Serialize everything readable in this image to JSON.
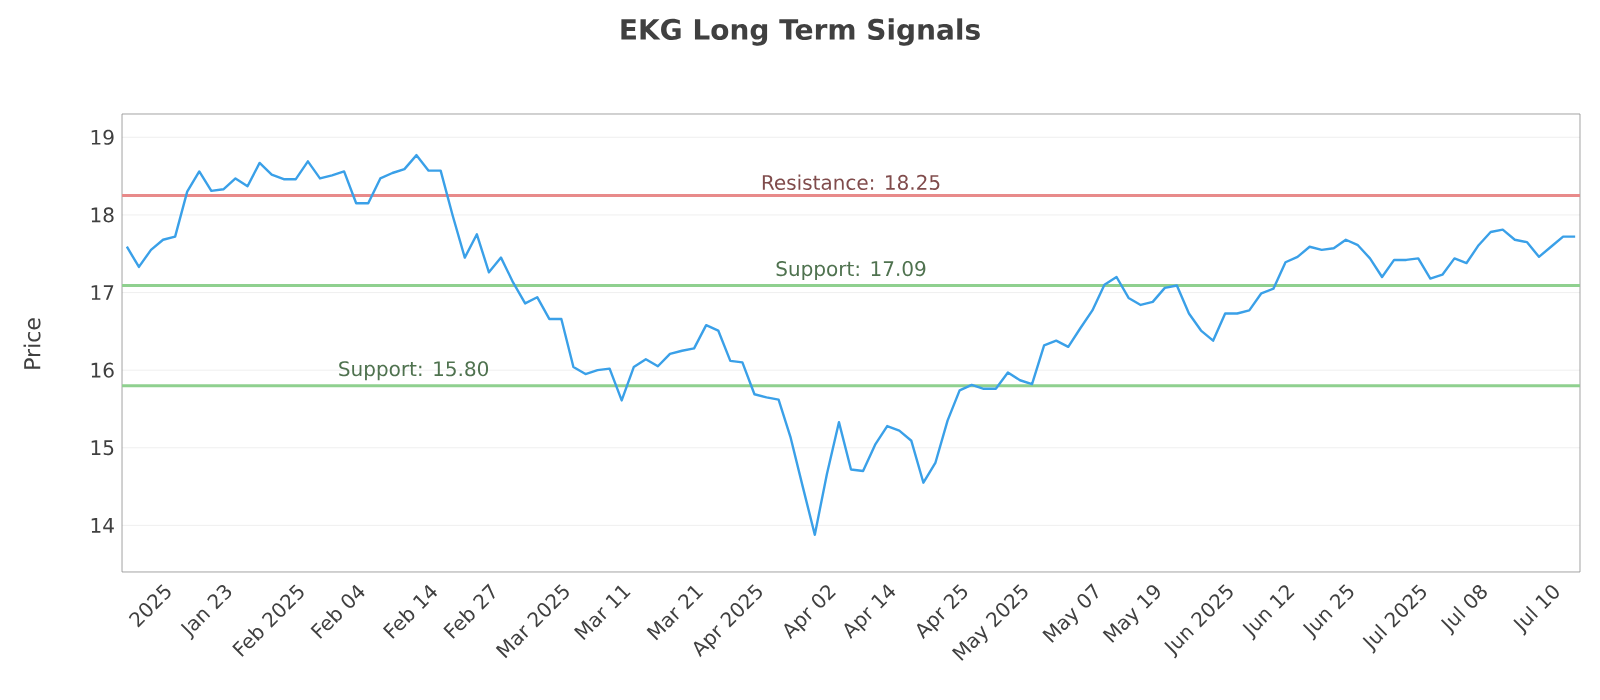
{
  "chart_data": {
    "type": "line",
    "title": "EKG Long Term Signals",
    "ylabel": "Price",
    "categories": [
      null,
      null,
      null,
      "2025",
      null,
      null,
      null,
      null,
      "Jan 23",
      null,
      null,
      null,
      null,
      null,
      "Feb 2025",
      null,
      null,
      null,
      null,
      "Feb 04",
      null,
      null,
      null,
      null,
      null,
      "Feb 14",
      null,
      null,
      null,
      null,
      "Feb 27",
      null,
      null,
      null,
      null,
      null,
      "Mar 2025",
      null,
      null,
      null,
      null,
      "Mar 11",
      null,
      null,
      null,
      null,
      null,
      "Mar 21",
      null,
      null,
      null,
      null,
      "Apr 2025",
      null,
      null,
      null,
      null,
      null,
      "Apr 02",
      null,
      null,
      null,
      null,
      "Apr 14",
      null,
      null,
      null,
      null,
      null,
      "Apr 25",
      null,
      null,
      null,
      null,
      "May 2025",
      null,
      null,
      null,
      null,
      null,
      "May 07",
      null,
      null,
      null,
      null,
      "May 19",
      null,
      null,
      null,
      null,
      null,
      "Jun 2025",
      null,
      null,
      null,
      null,
      "Jun 12",
      null,
      null,
      null,
      null,
      "Jun 25",
      null,
      null,
      null,
      null,
      null,
      "Jul 2025",
      null,
      null,
      null,
      null,
      "Jul 08",
      null,
      null,
      null,
      null,
      null,
      "Jul 10",
      null,
      null
    ],
    "series": [
      {
        "color": "#3aa0e8",
        "values": [
          17.59,
          17.33,
          17.55,
          17.68,
          17.72,
          18.3,
          18.56,
          18.31,
          18.33,
          18.47,
          18.37,
          18.67,
          18.52,
          18.46,
          18.46,
          18.69,
          18.47,
          18.51,
          18.56,
          18.15,
          18.15,
          18.47,
          18.54,
          18.59,
          18.77,
          18.57,
          18.57,
          17.99,
          17.45,
          17.75,
          17.26,
          17.45,
          17.13,
          16.86,
          16.94,
          16.66,
          16.66,
          16.04,
          15.95,
          16.0,
          16.02,
          15.61,
          16.04,
          16.14,
          16.05,
          16.21,
          16.25,
          16.28,
          16.58,
          16.51,
          16.12,
          16.1,
          15.69,
          15.65,
          15.62,
          15.13,
          14.5,
          13.88,
          14.66,
          15.33,
          14.72,
          14.7,
          15.04,
          15.28,
          15.22,
          15.09,
          14.55,
          14.81,
          15.35,
          15.74,
          15.81,
          15.76,
          15.76,
          15.97,
          15.87,
          15.82,
          16.32,
          16.38,
          16.3,
          16.54,
          16.77,
          17.1,
          17.2,
          16.93,
          16.84,
          16.88,
          17.06,
          17.09,
          16.73,
          16.51,
          16.38,
          16.73,
          16.73,
          16.77,
          16.99,
          17.05,
          17.39,
          17.46,
          17.59,
          17.55,
          17.57,
          17.68,
          17.61,
          17.44,
          17.2,
          17.42,
          17.42,
          17.44,
          17.18,
          17.23,
          17.44,
          17.38,
          17.61,
          17.78,
          17.81,
          17.68,
          17.65,
          17.46,
          17.59,
          17.72,
          17.72
        ]
      }
    ],
    "ylim": [
      13.4,
      19.3
    ],
    "yticks": [
      14,
      15,
      16,
      17,
      18,
      19
    ],
    "grid": "y",
    "marker": "none",
    "line_style": "solid",
    "ref_lines": [
      {
        "axis": "y",
        "value": 18.25,
        "label": "Resistance: 18.25",
        "color": "#e88a8a"
      },
      {
        "axis": "y",
        "value": 17.09,
        "label": "Support: 17.09",
        "color": "#8fd08f"
      },
      {
        "axis": "y",
        "value": 15.8,
        "label": "Support: 15.80",
        "color": "#8fd08f"
      }
    ]
  }
}
